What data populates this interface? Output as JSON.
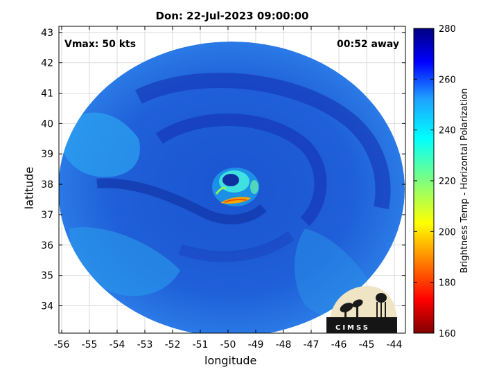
{
  "title": "Don: 22-Jul-2023 09:00:00",
  "annotations": {
    "vmax": "Vmax: 50 kts",
    "time_away": "00:52 away"
  },
  "axes": {
    "xlabel": "longitude",
    "ylabel": "latitude",
    "xticks": [
      "-56",
      "-55",
      "-54",
      "-53",
      "-52",
      "-51",
      "-50",
      "-49",
      "-48",
      "-47",
      "-46",
      "-45",
      "-44"
    ],
    "yticks": [
      "34",
      "35",
      "36",
      "37",
      "38",
      "39",
      "40",
      "41",
      "42",
      "43"
    ],
    "xlim": [
      -56.1,
      -43.6
    ],
    "ylim": [
      33.1,
      43.2
    ],
    "grid": true
  },
  "colorbar": {
    "label": "Brightness Temp - Horizontal Polarization",
    "range": [
      160,
      280
    ],
    "ticks": [
      "160",
      "180",
      "200",
      "220",
      "240",
      "260",
      "280"
    ],
    "colormap": "jet"
  },
  "logo": {
    "text": "CIMSS"
  },
  "map_data": {
    "product": "Brightness Temp - Horizontal Polarization",
    "swath_center": [
      -49.8,
      38.2
    ],
    "storm_center": [
      -50.2,
      38.05
    ],
    "eyewall_min_temp_approx": 205,
    "background_temp_approx": 250
  },
  "colors": {
    "background_field": "#1f5fd8",
    "cool_band": "#1638b8",
    "warm_outer": "#2ba0ef",
    "eyewall_warm": "#f2a800"
  }
}
